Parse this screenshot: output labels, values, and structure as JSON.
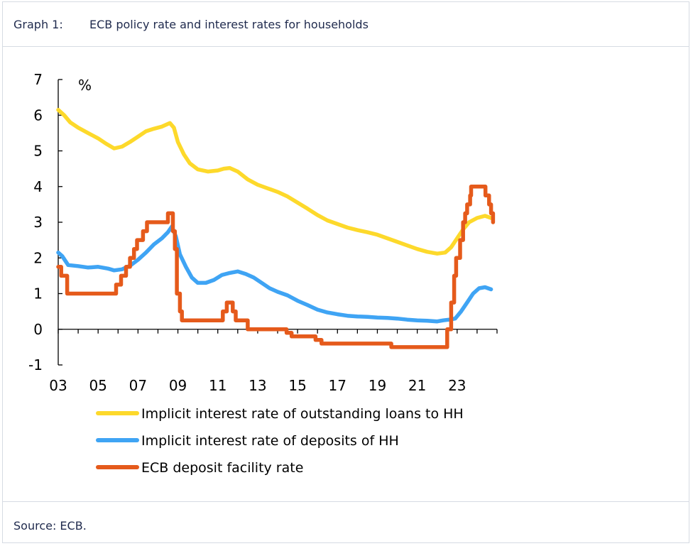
{
  "header": {
    "graph_label": "Graph 1:",
    "title": "ECB policy rate and interest rates for households"
  },
  "footer": {
    "source": "Source: ECB."
  },
  "chart_data": {
    "type": "line",
    "ylabel": "%",
    "ylim": [
      -1,
      7
    ],
    "yticks": [
      "-1",
      "0",
      "1",
      "2",
      "3",
      "4",
      "5",
      "6",
      "7"
    ],
    "xlim": [
      2003,
      2025
    ],
    "xticks": [
      {
        "x": 2003,
        "label": "03"
      },
      {
        "x": 2005,
        "label": "05"
      },
      {
        "x": 2007,
        "label": "07"
      },
      {
        "x": 2009,
        "label": "09"
      },
      {
        "x": 2011,
        "label": "11"
      },
      {
        "x": 2013,
        "label": "13"
      },
      {
        "x": 2015,
        "label": "15"
      },
      {
        "x": 2017,
        "label": "17"
      },
      {
        "x": 2019,
        "label": "19"
      },
      {
        "x": 2021,
        "label": "21"
      },
      {
        "x": 2023,
        "label": "23"
      }
    ],
    "legend_position": "bottom",
    "series": [
      {
        "name": "Implicit interest rate of outstanding loans to HH",
        "color": "#fdd92b",
        "points": [
          [
            2003.0,
            6.15
          ],
          [
            2003.3,
            6.0
          ],
          [
            2003.6,
            5.8
          ],
          [
            2004.0,
            5.65
          ],
          [
            2004.5,
            5.5
          ],
          [
            2005.0,
            5.35
          ],
          [
            2005.4,
            5.2
          ],
          [
            2005.8,
            5.07
          ],
          [
            2006.2,
            5.12
          ],
          [
            2006.6,
            5.25
          ],
          [
            2007.0,
            5.4
          ],
          [
            2007.4,
            5.55
          ],
          [
            2007.8,
            5.62
          ],
          [
            2008.2,
            5.68
          ],
          [
            2008.6,
            5.78
          ],
          [
            2008.8,
            5.65
          ],
          [
            2009.0,
            5.25
          ],
          [
            2009.3,
            4.9
          ],
          [
            2009.6,
            4.65
          ],
          [
            2010.0,
            4.48
          ],
          [
            2010.5,
            4.42
          ],
          [
            2011.0,
            4.45
          ],
          [
            2011.3,
            4.5
          ],
          [
            2011.6,
            4.52
          ],
          [
            2012.0,
            4.42
          ],
          [
            2012.5,
            4.2
          ],
          [
            2013.0,
            4.05
          ],
          [
            2013.5,
            3.95
          ],
          [
            2014.0,
            3.85
          ],
          [
            2014.5,
            3.72
          ],
          [
            2015.0,
            3.55
          ],
          [
            2015.5,
            3.38
          ],
          [
            2016.0,
            3.2
          ],
          [
            2016.5,
            3.05
          ],
          [
            2017.0,
            2.95
          ],
          [
            2017.5,
            2.85
          ],
          [
            2018.0,
            2.78
          ],
          [
            2018.5,
            2.72
          ],
          [
            2019.0,
            2.65
          ],
          [
            2019.5,
            2.55
          ],
          [
            2020.0,
            2.45
          ],
          [
            2020.5,
            2.35
          ],
          [
            2021.0,
            2.25
          ],
          [
            2021.5,
            2.17
          ],
          [
            2022.0,
            2.12
          ],
          [
            2022.4,
            2.15
          ],
          [
            2022.7,
            2.3
          ],
          [
            2023.0,
            2.55
          ],
          [
            2023.3,
            2.8
          ],
          [
            2023.6,
            3.0
          ],
          [
            2024.0,
            3.12
          ],
          [
            2024.4,
            3.18
          ],
          [
            2024.7,
            3.12
          ]
        ]
      },
      {
        "name": "Implicit interest rate of deposits of HH",
        "color": "#3fa4f4",
        "points": [
          [
            2003.0,
            2.15
          ],
          [
            2003.2,
            2.05
          ],
          [
            2003.5,
            1.8
          ],
          [
            2004.0,
            1.77
          ],
          [
            2004.5,
            1.73
          ],
          [
            2005.0,
            1.75
          ],
          [
            2005.5,
            1.7
          ],
          [
            2005.8,
            1.65
          ],
          [
            2006.2,
            1.68
          ],
          [
            2006.6,
            1.78
          ],
          [
            2007.0,
            1.95
          ],
          [
            2007.4,
            2.15
          ],
          [
            2007.8,
            2.38
          ],
          [
            2008.2,
            2.55
          ],
          [
            2008.5,
            2.72
          ],
          [
            2008.7,
            2.88
          ],
          [
            2008.9,
            2.6
          ],
          [
            2009.1,
            2.1
          ],
          [
            2009.4,
            1.75
          ],
          [
            2009.7,
            1.45
          ],
          [
            2010.0,
            1.3
          ],
          [
            2010.4,
            1.3
          ],
          [
            2010.8,
            1.38
          ],
          [
            2011.2,
            1.52
          ],
          [
            2011.6,
            1.58
          ],
          [
            2012.0,
            1.62
          ],
          [
            2012.4,
            1.55
          ],
          [
            2012.8,
            1.45
          ],
          [
            2013.2,
            1.3
          ],
          [
            2013.6,
            1.15
          ],
          [
            2014.0,
            1.05
          ],
          [
            2014.5,
            0.95
          ],
          [
            2015.0,
            0.8
          ],
          [
            2015.5,
            0.68
          ],
          [
            2016.0,
            0.55
          ],
          [
            2016.5,
            0.47
          ],
          [
            2017.0,
            0.42
          ],
          [
            2017.5,
            0.38
          ],
          [
            2018.0,
            0.36
          ],
          [
            2018.5,
            0.35
          ],
          [
            2019.0,
            0.33
          ],
          [
            2019.5,
            0.32
          ],
          [
            2020.0,
            0.3
          ],
          [
            2020.5,
            0.27
          ],
          [
            2021.0,
            0.25
          ],
          [
            2021.5,
            0.24
          ],
          [
            2022.0,
            0.22
          ],
          [
            2022.3,
            0.25
          ],
          [
            2022.6,
            0.27
          ],
          [
            2022.9,
            0.3
          ],
          [
            2023.2,
            0.5
          ],
          [
            2023.5,
            0.75
          ],
          [
            2023.8,
            1.0
          ],
          [
            2024.1,
            1.15
          ],
          [
            2024.4,
            1.18
          ],
          [
            2024.7,
            1.12
          ]
        ]
      },
      {
        "name": "ECB deposit facility rate",
        "color": "#e55a1b",
        "points": [
          [
            2003.0,
            1.75
          ],
          [
            2003.15,
            1.75
          ],
          [
            2003.15,
            1.5
          ],
          [
            2003.45,
            1.5
          ],
          [
            2003.45,
            1.0
          ],
          [
            2005.9,
            1.0
          ],
          [
            2005.9,
            1.25
          ],
          [
            2006.15,
            1.25
          ],
          [
            2006.15,
            1.5
          ],
          [
            2006.4,
            1.5
          ],
          [
            2006.4,
            1.75
          ],
          [
            2006.6,
            1.75
          ],
          [
            2006.6,
            2.0
          ],
          [
            2006.8,
            2.0
          ],
          [
            2006.8,
            2.25
          ],
          [
            2006.95,
            2.25
          ],
          [
            2006.95,
            2.5
          ],
          [
            2007.25,
            2.5
          ],
          [
            2007.25,
            2.75
          ],
          [
            2007.45,
            2.75
          ],
          [
            2007.45,
            3.0
          ],
          [
            2008.5,
            3.0
          ],
          [
            2008.5,
            3.25
          ],
          [
            2008.75,
            3.25
          ],
          [
            2008.75,
            2.75
          ],
          [
            2008.85,
            2.75
          ],
          [
            2008.85,
            2.25
          ],
          [
            2008.95,
            2.25
          ],
          [
            2008.95,
            1.0
          ],
          [
            2009.1,
            1.0
          ],
          [
            2009.1,
            0.5
          ],
          [
            2009.2,
            0.5
          ],
          [
            2009.2,
            0.25
          ],
          [
            2011.25,
            0.25
          ],
          [
            2011.25,
            0.5
          ],
          [
            2011.45,
            0.5
          ],
          [
            2011.45,
            0.75
          ],
          [
            2011.75,
            0.75
          ],
          [
            2011.75,
            0.5
          ],
          [
            2011.9,
            0.5
          ],
          [
            2011.9,
            0.25
          ],
          [
            2012.5,
            0.25
          ],
          [
            2012.5,
            0.0
          ],
          [
            2014.45,
            0.0
          ],
          [
            2014.45,
            -0.1
          ],
          [
            2014.7,
            -0.1
          ],
          [
            2014.7,
            -0.2
          ],
          [
            2015.9,
            -0.2
          ],
          [
            2015.9,
            -0.3
          ],
          [
            2016.2,
            -0.3
          ],
          [
            2016.2,
            -0.4
          ],
          [
            2019.7,
            -0.4
          ],
          [
            2019.7,
            -0.5
          ],
          [
            2022.5,
            -0.5
          ],
          [
            2022.5,
            0.0
          ],
          [
            2022.7,
            0.0
          ],
          [
            2022.7,
            0.75
          ],
          [
            2022.85,
            0.75
          ],
          [
            2022.85,
            1.5
          ],
          [
            2022.95,
            1.5
          ],
          [
            2022.95,
            2.0
          ],
          [
            2023.15,
            2.0
          ],
          [
            2023.15,
            2.5
          ],
          [
            2023.3,
            2.5
          ],
          [
            2023.3,
            3.0
          ],
          [
            2023.4,
            3.0
          ],
          [
            2023.4,
            3.25
          ],
          [
            2023.5,
            3.25
          ],
          [
            2023.5,
            3.5
          ],
          [
            2023.65,
            3.5
          ],
          [
            2023.65,
            3.75
          ],
          [
            2023.7,
            3.75
          ],
          [
            2023.7,
            4.0
          ],
          [
            2024.42,
            4.0
          ],
          [
            2024.42,
            3.75
          ],
          [
            2024.6,
            3.75
          ],
          [
            2024.6,
            3.5
          ],
          [
            2024.7,
            3.5
          ],
          [
            2024.7,
            3.25
          ],
          [
            2024.8,
            3.25
          ],
          [
            2024.8,
            3.0
          ]
        ]
      }
    ]
  }
}
